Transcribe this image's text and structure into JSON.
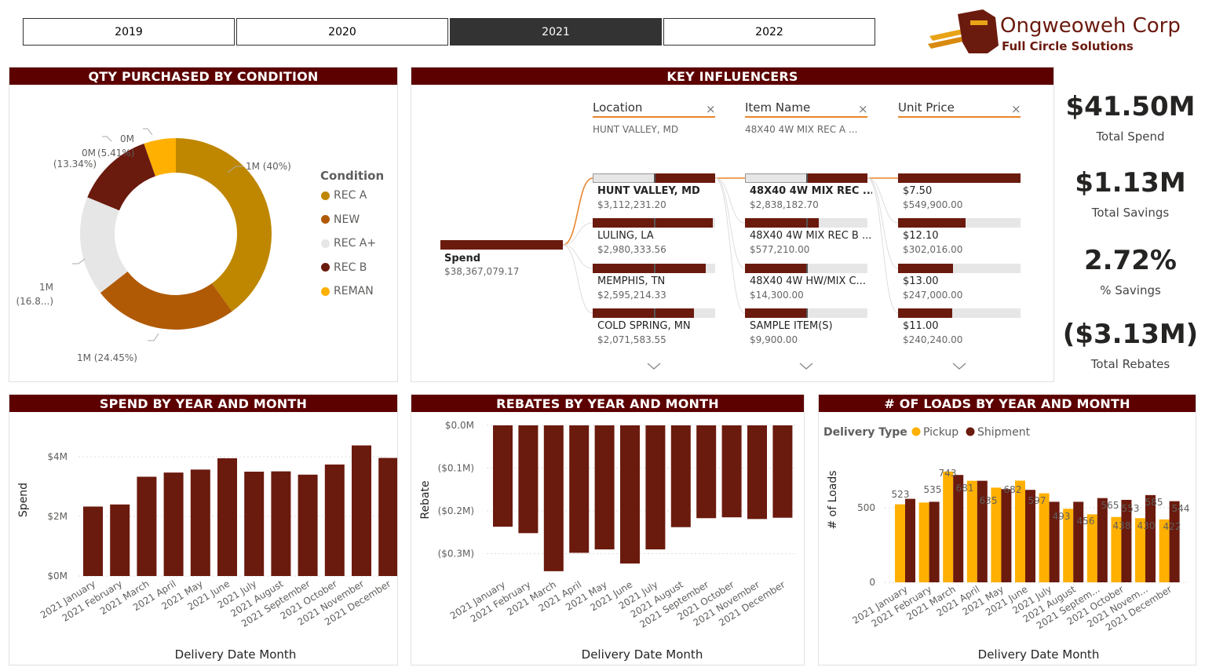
{
  "years": [
    "2019",
    "2020",
    "2021",
    "2022"
  ],
  "selected_year": "2021",
  "logo": {
    "company": "Ongweoweh Corp",
    "tagline": "Full Circle Solutions"
  },
  "kpis": [
    {
      "value": "$41.50M",
      "label": "Total Spend"
    },
    {
      "value": "$1.13M",
      "label": "Total Savings"
    },
    {
      "value": "2.72%",
      "label": "% Savings"
    },
    {
      "value": "($3.13M)",
      "label": "Total Rebates"
    }
  ],
  "qty_panel": {
    "title": "QTY PURCHASED BY CONDITION",
    "legend_title": "Condition",
    "colors": {
      "REC A": "#bf8700",
      "NEW": "#b05a06",
      "REC A+": "#e6e6e6",
      "REC B": "#6b1a0e",
      "REMAN": "#ffb000"
    },
    "labels": {
      "rec_a": "1M (40%)",
      "new": "1M (24.45%)",
      "rec_a_plus_1": "1M",
      "rec_a_plus_2": "(16.8...)",
      "rec_b_1": "0M",
      "rec_b_2": "(13.34%)",
      "reman_1": "0M",
      "reman_2": "(5.41%)",
      "reman_top": "0M"
    }
  },
  "chart_data": [
    {
      "type": "pie",
      "title": "QTY PURCHASED BY CONDITION",
      "legend_title": "Condition",
      "categories": [
        "REC A",
        "NEW",
        "REC A+",
        "REC B",
        "REMAN"
      ],
      "values": [
        40,
        24.45,
        16.8,
        13.34,
        5.41
      ],
      "unit": "%"
    },
    {
      "type": "bar",
      "title": "SPEND BY YEAR AND MONTH",
      "xlabel": "Delivery Date Month",
      "ylabel": "Spend",
      "ylim": [
        0,
        4.5
      ],
      "yticks": [
        "$0M",
        "$2M",
        "$4M"
      ],
      "categories": [
        "2021 January",
        "2021 February",
        "2021 March",
        "2021 April",
        "2021 May",
        "2021 June",
        "2021 July",
        "2021 August",
        "2021 September",
        "2021 October",
        "2021 November",
        "2021 December"
      ],
      "values": [
        2.33,
        2.4,
        3.33,
        3.47,
        3.57,
        3.95,
        3.5,
        3.51,
        3.4,
        3.74,
        4.38,
        3.96
      ]
    },
    {
      "type": "bar",
      "title": "REBATES BY YEAR AND MONTH",
      "xlabel": "Delivery Date Month",
      "ylabel": "Rebate",
      "ylim": [
        -0.35,
        0
      ],
      "yticks": [
        "$0.0M",
        "($0.1M)",
        "($0.2M)",
        "($0.3M)"
      ],
      "categories": [
        "2021 January",
        "2021 February",
        "2021 March",
        "2021 April",
        "2021 May",
        "2021 June",
        "2021 July",
        "2021 August",
        "2021 September",
        "2021 October",
        "2021 November",
        "2021 December"
      ],
      "values": [
        -0.237,
        -0.252,
        -0.341,
        -0.298,
        -0.29,
        -0.323,
        -0.29,
        -0.238,
        -0.217,
        -0.215,
        -0.219,
        -0.216
      ]
    },
    {
      "type": "bar",
      "title": "# OF LOADS BY YEAR AND MONTH",
      "xlabel": "Delivery Date Month",
      "ylabel": "# of Loads",
      "legend_title": "Delivery Type",
      "ylim": [
        0,
        800
      ],
      "yticks": [
        "0",
        "500"
      ],
      "categories": [
        "2021 January",
        "2021 February",
        "2021 March",
        "2021 April",
        "2021 May",
        "2021 June",
        "2021 July",
        "2021 August",
        "2021 Septem...",
        "2021 October",
        "2021 Novem...",
        "2021 December"
      ],
      "series": [
        {
          "name": "Pickup",
          "color": "#ffb000",
          "values": [
            523,
            535,
            743,
            681,
            635,
            682,
            597,
            493,
            456,
            438,
            430,
            422
          ]
        },
        {
          "name": "Shipment",
          "color": "#6b1a0e",
          "values": [
            560,
            540,
            720,
            681,
            625,
            620,
            540,
            540,
            565,
            553,
            585,
            544
          ]
        }
      ],
      "data_labels": [
        "523",
        "535",
        "743",
        "681",
        "635",
        "682",
        "597",
        "493",
        "456",
        "565",
        "438",
        "553",
        "430",
        "585",
        "422",
        "544"
      ]
    }
  ],
  "key_influencers": {
    "title": "KEY INFLUENCERS",
    "root": {
      "label": "Spend",
      "value": "$38,367,079.17"
    },
    "columns": [
      {
        "header": "Location",
        "filter": "HUNT VALLEY, MD",
        "items": [
          {
            "name": "HUNT VALLEY, MD",
            "value": "$3,112,231.20",
            "fill": 0.5,
            "bold": true
          },
          {
            "name": "LULING, LA",
            "value": "$2,980,333.56",
            "fill": 0.98,
            "bold": false
          },
          {
            "name": "MEMPHIS, TN",
            "value": "$2,595,214.33",
            "fill": 0.92,
            "bold": false
          },
          {
            "name": "COLD SPRING, MN",
            "value": "$2,071,583.55",
            "fill": 0.83,
            "bold": false
          }
        ]
      },
      {
        "header": "Item Name",
        "filter": "48X40 4W MIX REC A ...",
        "items": [
          {
            "name": "48X40 4W MIX REC ...",
            "value": "$2,838,182.70",
            "fill": 0.5,
            "bold": true
          },
          {
            "name": "48X40 4W MIX REC B ...",
            "value": "$577,210.00",
            "fill": 0.6,
            "bold": false
          },
          {
            "name": "48X40 4W HW/MIX C...",
            "value": "$14,300.00",
            "fill": 0.5,
            "bold": false
          },
          {
            "name": "SAMPLE ITEM(S)",
            "value": "$9,900.00",
            "fill": 0.5,
            "bold": false
          }
        ]
      },
      {
        "header": "Unit Price",
        "filter": "",
        "items": [
          {
            "name": "$7.50",
            "value": "$549,900.00",
            "fill": 1.0,
            "bold": false
          },
          {
            "name": "$12.10",
            "value": "$302,016.00",
            "fill": 0.55,
            "bold": false
          },
          {
            "name": "$13.00",
            "value": "$247,000.00",
            "fill": 0.45,
            "bold": false
          },
          {
            "name": "$11.00",
            "value": "$240,240.00",
            "fill": 0.44,
            "bold": false
          }
        ]
      }
    ]
  },
  "spend_panel": {
    "title": "SPEND BY YEAR AND MONTH",
    "ylabel": "Spend",
    "xlabel": "Delivery Date Month"
  },
  "rebates_panel": {
    "title": "REBATES BY YEAR AND MONTH",
    "ylabel": "Rebate",
    "xlabel": "Delivery Date Month"
  },
  "loads_panel": {
    "title": "# OF LOADS BY YEAR AND MONTH",
    "ylabel": "# of Loads",
    "xlabel": "Delivery Date Month",
    "legend_title": "Delivery Type"
  }
}
